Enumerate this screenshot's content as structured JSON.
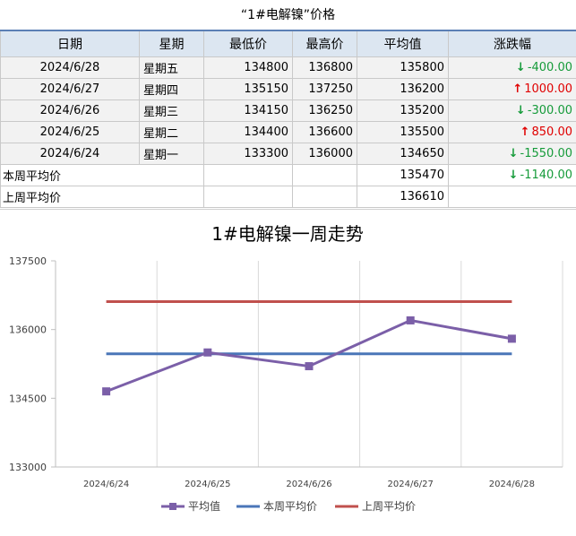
{
  "title": "“1#电解镍”价格",
  "table": {
    "headers": [
      "日期",
      "星期",
      "最低价",
      "最高价",
      "平均值",
      "涨跌幅"
    ],
    "rows": [
      {
        "date": "2024/6/28",
        "weekday": "星期五",
        "low": "134800",
        "high": "136800",
        "avg": "135800",
        "change": "-400.00",
        "dir": "down"
      },
      {
        "date": "2024/6/27",
        "weekday": "星期四",
        "low": "135150",
        "high": "137250",
        "avg": "136200",
        "change": "1000.00",
        "dir": "up"
      },
      {
        "date": "2024/6/26",
        "weekday": "星期三",
        "low": "134150",
        "high": "136250",
        "avg": "135200",
        "change": "-300.00",
        "dir": "down"
      },
      {
        "date": "2024/6/25",
        "weekday": "星期二",
        "low": "134400",
        "high": "136600",
        "avg": "135500",
        "change": "850.00",
        "dir": "up"
      },
      {
        "date": "2024/6/24",
        "weekday": "星期一",
        "low": "133300",
        "high": "136000",
        "avg": "134650",
        "change": "-1550.00",
        "dir": "down"
      }
    ],
    "this_week": {
      "label": "本周平均价",
      "avg": "135470",
      "change": "-1140.00",
      "dir": "down"
    },
    "last_week": {
      "label": "上周平均价",
      "avg": "136610"
    },
    "arrows": {
      "up": "↑",
      "down": "↓"
    },
    "colors": {
      "up": "#e00000",
      "down": "#169b3a"
    }
  },
  "chart_data": {
    "type": "line",
    "title": "1#电解镍一周走势",
    "categories": [
      "2024/6/24",
      "2024/6/25",
      "2024/6/26",
      "2024/6/27",
      "2024/6/28"
    ],
    "series": [
      {
        "name": "平均值",
        "values": [
          134650,
          135500,
          135200,
          136200,
          135800
        ],
        "color": "#7b5fa8",
        "marker": "square"
      },
      {
        "name": "本周平均价",
        "values": [
          135470,
          135470,
          135470,
          135470,
          135470
        ],
        "color": "#4a76b8"
      },
      {
        "name": "上周平均价",
        "values": [
          136610,
          136610,
          136610,
          136610,
          136610
        ],
        "color": "#c0504d"
      }
    ],
    "ylim": [
      133000,
      137500
    ],
    "yticks": [
      133000,
      134500,
      136000,
      137500
    ],
    "grid": "vertical",
    "legend": "bottom"
  }
}
